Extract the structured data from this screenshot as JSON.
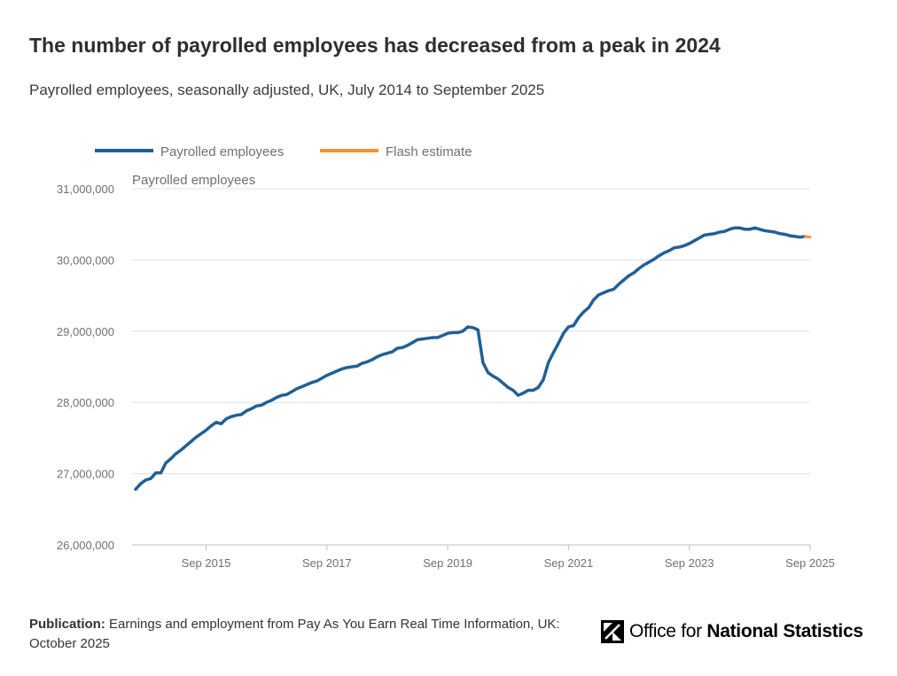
{
  "title": "The number of payrolled employees has decreased from a peak in 2024",
  "subtitle": "Payrolled employees, seasonally adjusted, UK, July 2014 to September 2025",
  "footer": {
    "publication_label": "Publication:",
    "publication_text": "Earnings and employment from Pay As You Earn Real Time Information, UK: October 2025"
  },
  "logo": {
    "prefix": "Office for ",
    "bold": "National Statistics",
    "icon": "ons-logo-icon"
  },
  "colors": {
    "series": "#206095",
    "flash": "#f39431",
    "grid": "#e0e0e0",
    "axis_text": "#707071"
  },
  "chart_data": {
    "type": "line",
    "ylabel": "Payrolled employees",
    "ylim": [
      26000000,
      31000000
    ],
    "yticks": [
      26000000,
      27000000,
      28000000,
      29000000,
      30000000,
      31000000
    ],
    "ytick_labels": [
      "26,000,000",
      "27,000,000",
      "28,000,000",
      "29,000,000",
      "30,000,000",
      "31,000,000"
    ],
    "xlim_months": [
      0,
      134
    ],
    "xticks": [
      {
        "month": 14,
        "label": "Sep 2015"
      },
      {
        "month": 38,
        "label": "Sep 2017"
      },
      {
        "month": 62,
        "label": "Sep 2019"
      },
      {
        "month": 86,
        "label": "Sep 2021"
      },
      {
        "month": 110,
        "label": "Sep 2023"
      },
      {
        "month": 134,
        "label": "Sep 2025"
      }
    ],
    "x_note": "months since July 2014",
    "legend": [
      {
        "name": "Payrolled employees",
        "color": "#206095"
      },
      {
        "name": "Flash estimate",
        "color": "#f39431"
      }
    ],
    "series": [
      {
        "name": "Payrolled employees",
        "x": [
          0,
          1,
          2,
          3,
          4,
          5,
          6,
          7,
          8,
          9,
          10,
          11,
          12,
          13,
          14,
          15,
          16,
          17,
          18,
          19,
          20,
          21,
          22,
          23,
          24,
          25,
          26,
          27,
          28,
          29,
          30,
          31,
          32,
          33,
          34,
          35,
          36,
          37,
          38,
          39,
          40,
          41,
          42,
          43,
          44,
          45,
          46,
          47,
          48,
          49,
          50,
          51,
          52,
          53,
          54,
          55,
          56,
          57,
          58,
          59,
          60,
          61,
          62,
          63,
          64,
          65,
          66,
          67,
          68,
          69,
          70,
          71,
          72,
          73,
          74,
          75,
          76,
          77,
          78,
          79,
          80,
          81,
          82,
          83,
          84,
          85,
          86,
          87,
          88,
          89,
          90,
          91,
          92,
          93,
          94,
          95,
          96,
          97,
          98,
          99,
          100,
          101,
          102,
          103,
          104,
          105,
          106,
          107,
          108,
          109,
          110,
          111,
          112,
          113,
          114,
          115,
          116,
          117,
          118,
          119,
          120,
          121,
          122,
          123,
          124,
          125,
          126,
          127,
          128,
          129,
          130,
          131,
          132,
          133
        ],
        "values": [
          26780000,
          26860000,
          26910000,
          26930000,
          27010000,
          27010000,
          27150000,
          27210000,
          27280000,
          27330000,
          27390000,
          27450000,
          27510000,
          27560000,
          27610000,
          27670000,
          27720000,
          27700000,
          27770000,
          27800000,
          27820000,
          27830000,
          27880000,
          27910000,
          27950000,
          27960000,
          28000000,
          28030000,
          28070000,
          28100000,
          28110000,
          28150000,
          28190000,
          28220000,
          28250000,
          28280000,
          28300000,
          28340000,
          28380000,
          28410000,
          28440000,
          28470000,
          28490000,
          28500000,
          28510000,
          28550000,
          28570000,
          28600000,
          28640000,
          28670000,
          28690000,
          28710000,
          28760000,
          28770000,
          28800000,
          28840000,
          28880000,
          28890000,
          28900000,
          28910000,
          28910000,
          28940000,
          28970000,
          28980000,
          28980000,
          29000000,
          29060000,
          29050000,
          29020000,
          28560000,
          28420000,
          28370000,
          28330000,
          28270000,
          28210000,
          28170000,
          28100000,
          28130000,
          28170000,
          28170000,
          28210000,
          28320000,
          28560000,
          28700000,
          28830000,
          28970000,
          29060000,
          29080000,
          29190000,
          29270000,
          29330000,
          29440000,
          29510000,
          29540000,
          29570000,
          29590000,
          29660000,
          29720000,
          29780000,
          29820000,
          29880000,
          29930000,
          29970000,
          30010000,
          30060000,
          30100000,
          30130000,
          30170000,
          30180000,
          30200000,
          30230000,
          30270000,
          30310000,
          30350000,
          30360000,
          30370000,
          30390000,
          30400000,
          30430000,
          30450000,
          30450000,
          30430000,
          30430000,
          30450000,
          30430000,
          30410000,
          30400000,
          30390000,
          30370000,
          30360000,
          30340000,
          30330000,
          30320000,
          30330000
        ]
      },
      {
        "name": "Flash estimate",
        "x": [
          133,
          134
        ],
        "values": [
          30330000,
          30320000
        ]
      }
    ]
  }
}
